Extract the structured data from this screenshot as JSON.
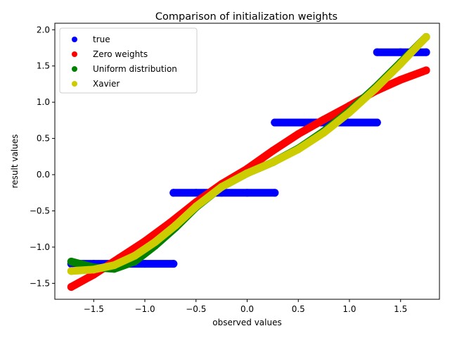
{
  "chart_data": {
    "type": "scatter",
    "title": "Comparison of initialization weights",
    "xlabel": "observed values",
    "ylabel": "result values",
    "xlim": [
      -1.88,
      1.88
    ],
    "ylim": [
      -1.72,
      2.09
    ],
    "xticks": [
      -1.5,
      -1.0,
      -0.5,
      0.0,
      0.5,
      1.0,
      1.5
    ],
    "xtick_labels": [
      "−1.5",
      "−1.0",
      "−0.5",
      "0.0",
      "0.5",
      "1.0",
      "1.5"
    ],
    "yticks": [
      -1.5,
      -1.0,
      -0.5,
      0.0,
      0.5,
      1.0,
      1.5,
      2.0
    ],
    "ytick_labels": [
      "−1.5",
      "−1.0",
      "−0.5",
      "0.0",
      "0.5",
      "1.0",
      "1.5",
      "2.0"
    ],
    "grid": false,
    "legend_position": "top-left",
    "series": [
      {
        "name": "true",
        "color": "#0000ff",
        "points": [
          [
            -1.72,
            -1.23
          ],
          [
            -1.5,
            -1.23
          ],
          [
            -1.25,
            -1.23
          ],
          [
            -1.0,
            -1.23
          ],
          [
            -0.72,
            -1.23
          ],
          [
            -0.72,
            -0.25
          ],
          [
            -0.5,
            -0.25
          ],
          [
            -0.25,
            -0.25
          ],
          [
            0.0,
            -0.25
          ],
          [
            0.27,
            -0.25
          ],
          [
            0.27,
            0.72
          ],
          [
            0.5,
            0.72
          ],
          [
            0.75,
            0.72
          ],
          [
            1.0,
            0.72
          ],
          [
            1.27,
            0.72
          ],
          [
            1.27,
            1.69
          ],
          [
            1.5,
            1.69
          ],
          [
            1.75,
            1.69
          ]
        ]
      },
      {
        "name": "Zero weights",
        "color": "#ff0000",
        "points": [
          [
            -1.72,
            -1.55
          ],
          [
            -1.5,
            -1.38
          ],
          [
            -1.25,
            -1.15
          ],
          [
            -1.0,
            -0.92
          ],
          [
            -0.75,
            -0.66
          ],
          [
            -0.5,
            -0.38
          ],
          [
            -0.25,
            -0.13
          ],
          [
            0.0,
            0.08
          ],
          [
            0.25,
            0.33
          ],
          [
            0.5,
            0.56
          ],
          [
            0.75,
            0.76
          ],
          [
            1.0,
            0.95
          ],
          [
            1.25,
            1.15
          ],
          [
            1.5,
            1.31
          ],
          [
            1.75,
            1.44
          ]
        ]
      },
      {
        "name": "Uniform distribution",
        "color": "#008000",
        "points": [
          [
            -1.72,
            -1.2
          ],
          [
            -1.5,
            -1.28
          ],
          [
            -1.3,
            -1.3
          ],
          [
            -1.1,
            -1.2
          ],
          [
            -0.9,
            -0.98
          ],
          [
            -0.7,
            -0.73
          ],
          [
            -0.5,
            -0.45
          ],
          [
            -0.25,
            -0.17
          ],
          [
            0.0,
            0.02
          ],
          [
            0.25,
            0.17
          ],
          [
            0.5,
            0.36
          ],
          [
            0.75,
            0.6
          ],
          [
            1.0,
            0.88
          ],
          [
            1.25,
            1.2
          ],
          [
            1.5,
            1.55
          ],
          [
            1.75,
            1.9
          ]
        ]
      },
      {
        "name": "Xavier",
        "color": "#cccc00",
        "points": [
          [
            -1.72,
            -1.33
          ],
          [
            -1.5,
            -1.31
          ],
          [
            -1.3,
            -1.25
          ],
          [
            -1.1,
            -1.12
          ],
          [
            -0.9,
            -0.93
          ],
          [
            -0.7,
            -0.7
          ],
          [
            -0.5,
            -0.44
          ],
          [
            -0.25,
            -0.17
          ],
          [
            0.0,
            0.02
          ],
          [
            0.25,
            0.17
          ],
          [
            0.5,
            0.35
          ],
          [
            0.75,
            0.58
          ],
          [
            1.0,
            0.86
          ],
          [
            1.25,
            1.18
          ],
          [
            1.5,
            1.53
          ],
          [
            1.75,
            1.9
          ]
        ]
      }
    ]
  }
}
